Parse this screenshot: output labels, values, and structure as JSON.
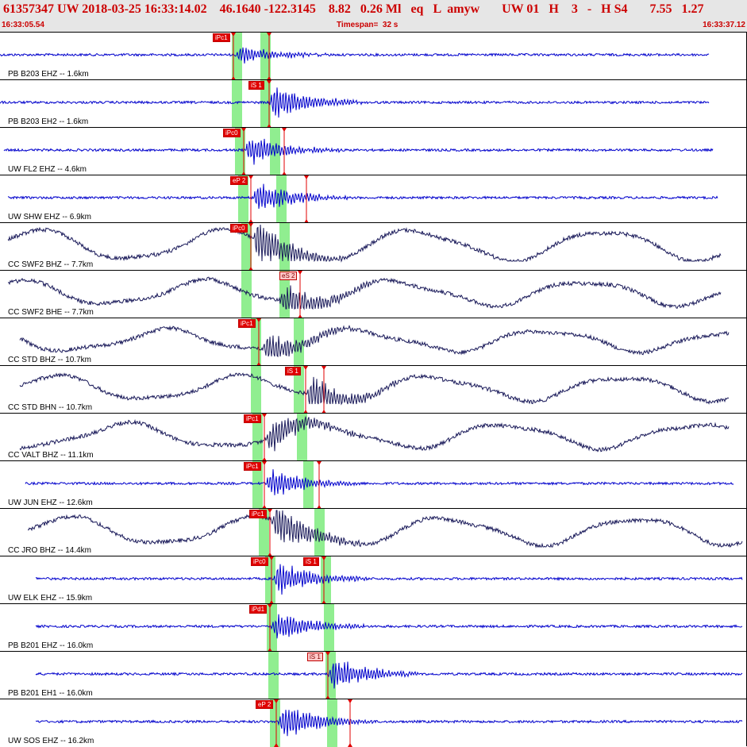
{
  "header": {
    "event_line": "61357347 UW 2018-03-25 16:33:14.02    46.1640 -122.3145    8.82   0.26 Ml   eq   L  amyw       UW 01   H    3   -   H S4       7.55   1.27",
    "start_time": "16:33:05.54",
    "timespan_label": "Timespan=",
    "timespan_value": "32 s",
    "end_time": "16:33:37.12"
  },
  "colors": {
    "header_bg": "#e6e6e6",
    "header_text": "#cc0000",
    "trace_blue": "#0000cc",
    "trace_navy": "#1a1a5a",
    "pick_red": "#e00000",
    "pick_pale": "#ffc8c8",
    "window_green": "#90ee90"
  },
  "traces": [
    {
      "label": "PB B203 EHZ -- 1.6km",
      "color": "#0000cc",
      "style": "hf",
      "picks": [
        {
          "text": "iPc1",
          "t": 294,
          "style": "solid"
        },
        {
          "text": "",
          "t": 339,
          "style": "none"
        }
      ],
      "windows": [
        292,
        328
      ],
      "start": 0,
      "end": 893,
      "amp": 8,
      "onset": 296
    },
    {
      "label": "PB B203 EH2 -- 1.6km",
      "color": "#0000cc",
      "style": "hf",
      "picks": [
        {
          "text": "iS 1",
          "t": 339,
          "style": "solid"
        }
      ],
      "windows": [
        292,
        328
      ],
      "start": 0,
      "end": 893,
      "amp": 14,
      "onset": 339
    },
    {
      "label": "UW FL2 EHZ -- 4.6km",
      "color": "#0000cc",
      "style": "hf",
      "picks": [
        {
          "text": "iPc0",
          "t": 307,
          "style": "solid"
        },
        {
          "text": "",
          "t": 358,
          "style": "none"
        }
      ],
      "windows": [
        296,
        340
      ],
      "start": 5,
      "end": 898,
      "amp": 12,
      "onset": 308
    },
    {
      "label": "UW SHW EHZ -- 6.9km",
      "color": "#0000cc",
      "style": "hf",
      "picks": [
        {
          "text": "eP 2",
          "t": 316,
          "style": "solid"
        },
        {
          "text": "",
          "t": 386,
          "style": "none"
        }
      ],
      "windows": [
        300,
        348
      ],
      "start": 10,
      "end": 904,
      "amp": 13,
      "onset": 318
    },
    {
      "label": "CC SWF2 BHZ -- 7.7km",
      "color": "#1a1a5a",
      "style": "lf",
      "picks": [
        {
          "text": "iPc0",
          "t": 316,
          "style": "solid"
        }
      ],
      "windows": [
        304,
        352
      ],
      "start": 10,
      "end": 908,
      "amp": 20,
      "onset": 318
    },
    {
      "label": "CC SWF2 BHE -- 7.7km",
      "color": "#1a1a5a",
      "style": "lf",
      "picks": [
        {
          "text": "eS 2",
          "t": 378,
          "style": "pale"
        }
      ],
      "windows": [
        304,
        352
      ],
      "start": 10,
      "end": 908,
      "amp": 16,
      "onset": 352
    },
    {
      "label": "CC STD BHZ -- 10.7km",
      "color": "#1a1a5a",
      "style": "lf",
      "picks": [
        {
          "text": "iPc1",
          "t": 326,
          "style": "solid"
        }
      ],
      "windows": [
        316,
        370
      ],
      "start": 25,
      "end": 918,
      "amp": 14,
      "onset": 330
    },
    {
      "label": "CC STD BHN -- 10.7km",
      "color": "#1a1a5a",
      "style": "lf",
      "picks": [
        {
          "text": "iS 1",
          "t": 385,
          "style": "solid"
        },
        {
          "text": "",
          "t": 408,
          "style": "none"
        }
      ],
      "windows": [
        316,
        370
      ],
      "start": 25,
      "end": 918,
      "amp": 16,
      "onset": 385
    },
    {
      "label": "CC VALT BHZ -- 11.1km",
      "color": "#1a1a5a",
      "style": "lf",
      "picks": [
        {
          "text": "iPc1",
          "t": 333,
          "style": "solid"
        }
      ],
      "windows": [
        318,
        374
      ],
      "start": 25,
      "end": 918,
      "amp": 16,
      "onset": 334
    },
    {
      "label": "UW JUN EHZ -- 12.6km",
      "color": "#0000cc",
      "style": "hf",
      "picks": [
        {
          "text": "iPc1",
          "t": 333,
          "style": "solid"
        },
        {
          "text": "",
          "t": 402,
          "style": "none"
        }
      ],
      "windows": [
        318,
        382
      ],
      "start": 32,
      "end": 924,
      "amp": 12,
      "onset": 334
    },
    {
      "label": "CC JRO BHZ -- 14.4km",
      "color": "#1a1a5a",
      "style": "lf",
      "picks": [
        {
          "text": "iPc1",
          "t": 340,
          "style": "solid"
        }
      ],
      "windows": [
        326,
        396
      ],
      "start": 35,
      "end": 935,
      "amp": 18,
      "onset": 342
    },
    {
      "label": "UW ELK EHZ -- 15.9km",
      "color": "#0000cc",
      "style": "hf",
      "picks": [
        {
          "text": "iPc0",
          "t": 342,
          "style": "solid"
        },
        {
          "text": "iS 1",
          "t": 408,
          "style": "solid"
        }
      ],
      "windows": [
        334,
        404
      ],
      "start": 45,
      "end": 935,
      "amp": 14,
      "onset": 343
    },
    {
      "label": "PB B201 EHZ -- 16.0km",
      "color": "#0000cc",
      "style": "hf",
      "picks": [
        {
          "text": "iPd1",
          "t": 340,
          "style": "solid"
        }
      ],
      "windows": [
        336,
        408
      ],
      "start": 45,
      "end": 935,
      "amp": 12,
      "onset": 341
    },
    {
      "label": "PB B201 EH1 -- 16.0km",
      "color": "#0000cc",
      "style": "hf",
      "picks": [
        {
          "text": "iS 1",
          "t": 413,
          "style": "pale"
        }
      ],
      "windows": [
        338,
        410
      ],
      "start": 45,
      "end": 935,
      "amp": 14,
      "onset": 413
    },
    {
      "label": "UW SOS EHZ -- 16.2km",
      "color": "#0000cc",
      "style": "hf",
      "picks": [
        {
          "text": "eP 2",
          "t": 348,
          "style": "solid"
        },
        {
          "text": "",
          "t": 441,
          "style": "none"
        }
      ],
      "windows": [
        340,
        412
      ],
      "start": 45,
      "end": 935,
      "amp": 16,
      "onset": 350
    }
  ]
}
